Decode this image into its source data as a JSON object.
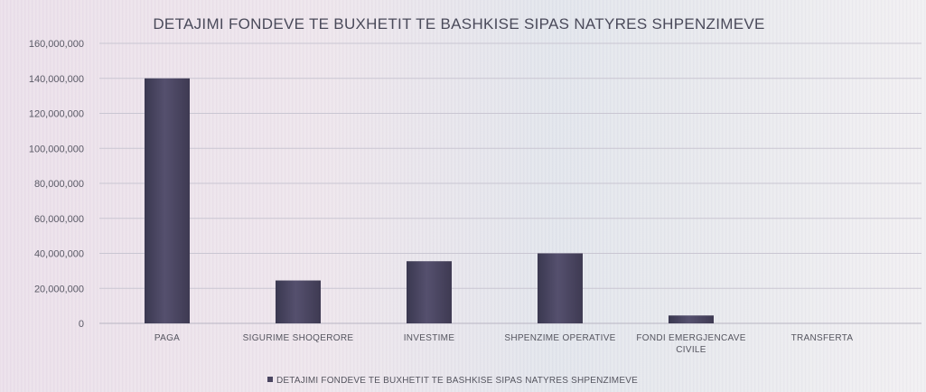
{
  "chart_data": {
    "type": "bar",
    "title": "DETAJIMI FONDEVE TE BUXHETIT TE BASHKISE SIPAS NATYRES SHPENZIMEVE",
    "categories": [
      [
        "PAGA"
      ],
      [
        "SIGURIME SHOQERORE"
      ],
      [
        "INVESTIME"
      ],
      [
        "SHPENZIME OPERATIVE"
      ],
      [
        "FONDI EMERGJENCAVE",
        "CIVILE"
      ],
      [
        "TRANSFERTA"
      ]
    ],
    "series": [
      {
        "name": "DETAJIMI FONDEVE TE BUXHETIT TE BASHKISE SIPAS NATYRES SHPENZIMEVE",
        "values": [
          140000000,
          24500000,
          35500000,
          40000000,
          4500000,
          0
        ]
      }
    ],
    "yticks": [
      "0",
      "20,000,000",
      "40,000,000",
      "60,000,000",
      "80,000,000",
      "100,000,000",
      "120,000,000",
      "140,000,000",
      "160,000,000"
    ],
    "ylim": [
      0,
      160000000
    ],
    "grid": true,
    "legend_position": "bottom",
    "bar_color": "#4a4560"
  }
}
